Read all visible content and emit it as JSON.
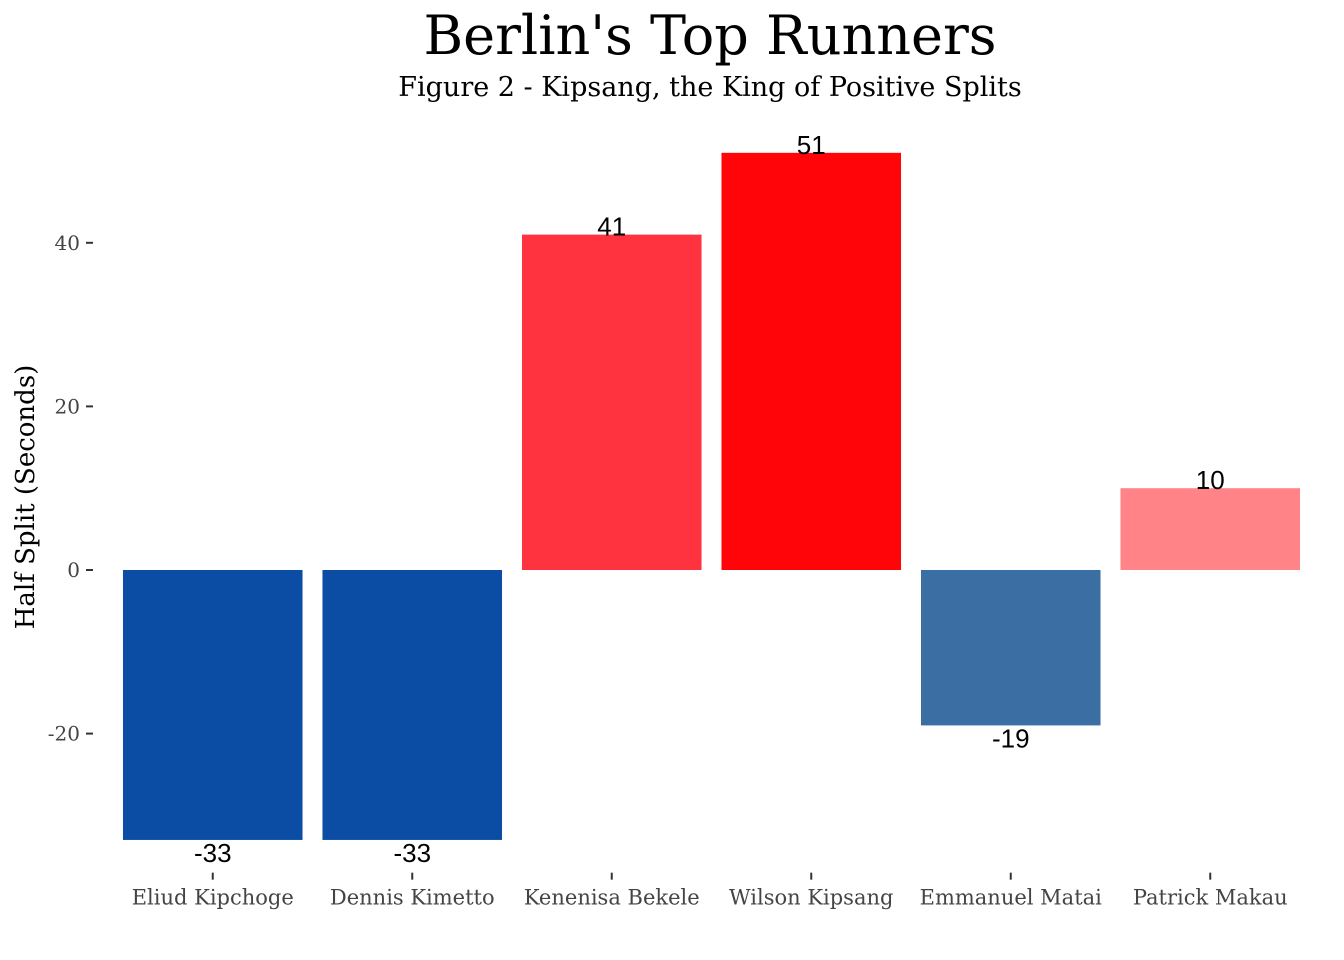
{
  "chart_data": {
    "type": "bar",
    "title": "Berlin's Top Runners",
    "subtitle": "Figure 2 - Kipsang, the King of Positive Splits",
    "xlabel": "",
    "ylabel": "Half Split (Seconds)",
    "categories": [
      "Eliud Kipchoge",
      "Dennis Kimetto",
      "Kenenisa Bekele",
      "Wilson Kipsang",
      "Emmanuel Matai",
      "Patrick Makau"
    ],
    "values": [
      -33,
      -33,
      41,
      51,
      -19,
      10
    ],
    "data_labels": [
      "-33",
      "-33",
      "41",
      "51",
      "-19",
      "10"
    ],
    "colors": [
      "#0b4ca5",
      "#0b4ca5",
      "#ff333f",
      "#ff0408",
      "#3b6fa4",
      "#ff8387"
    ],
    "yticks": [
      -20,
      0,
      20,
      40
    ],
    "ytick_labels": [
      "-20",
      "0",
      "20",
      "40"
    ],
    "ylim": [
      -37,
      55
    ],
    "grid": false,
    "legend": "none"
  }
}
